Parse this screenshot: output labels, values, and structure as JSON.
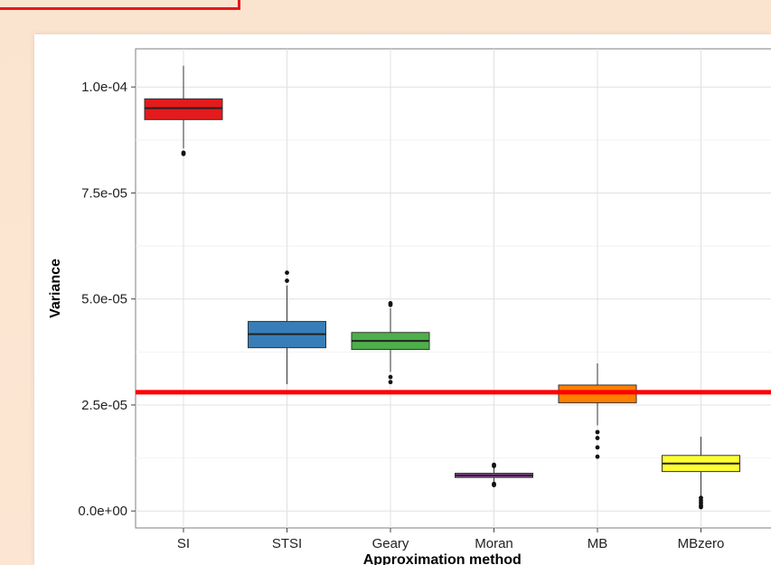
{
  "chart_data": {
    "type": "box",
    "title": "",
    "xlabel": "Approximation method",
    "ylabel": "Variance",
    "ylim": [
      -4e-06,
      0.000109
    ],
    "yticks": [
      {
        "value": 0,
        "label": "0.0e+00"
      },
      {
        "value": 2.5e-05,
        "label": "2.5e-05"
      },
      {
        "value": 5e-05,
        "label": "5.0e-05"
      },
      {
        "value": 7.5e-05,
        "label": "7.5e-05"
      },
      {
        "value": 0.0001,
        "label": "1.0e-04"
      }
    ],
    "grid": true,
    "legend": "none",
    "reference_line": {
      "value": 2.8e-05,
      "color": "#ff0000"
    },
    "categories": [
      "SI",
      "STSI",
      "Geary",
      "Moran",
      "MB",
      "MBzero"
    ],
    "boxes": [
      {
        "category": "SI",
        "color": "#e41a1c",
        "whisker_low": 8.55e-05,
        "q1": 9.23e-05,
        "median": 9.5e-05,
        "q3": 9.72e-05,
        "whisker_high": 0.000105,
        "outliers": [
          8.45e-05,
          8.42e-05
        ]
      },
      {
        "category": "STSI",
        "color": "#377eb8",
        "whisker_low": 2.99e-05,
        "q1": 3.85e-05,
        "median": 4.17e-05,
        "q3": 4.47e-05,
        "whisker_high": 5.32e-05,
        "outliers": [
          5.43e-05,
          5.62e-05
        ]
      },
      {
        "category": "Geary",
        "color": "#4daf4a",
        "whisker_low": 3.28e-05,
        "q1": 3.81e-05,
        "median": 4.01e-05,
        "q3": 4.21e-05,
        "whisker_high": 4.78e-05,
        "outliers": [
          4.86e-05,
          4.9e-05,
          3.16e-05,
          3.04e-05
        ]
      },
      {
        "category": "Moran",
        "color": "#984ea3",
        "whisker_low": 6.8e-06,
        "q1": 7.9e-06,
        "median": 8.4e-06,
        "q3": 8.9e-06,
        "whisker_high": 1.02e-05,
        "outliers": [
          1.06e-05,
          1.09e-05,
          6.4e-06,
          6.1e-06
        ]
      },
      {
        "category": "MB",
        "color": "#ff7f00",
        "whisker_low": 2.02e-05,
        "q1": 2.55e-05,
        "median": 2.78e-05,
        "q3": 2.97e-05,
        "whisker_high": 3.48e-05,
        "outliers": [
          1.86e-05,
          1.72e-05,
          1.5e-05,
          1.28e-05
        ]
      },
      {
        "category": "MBzero",
        "color": "#ffff33",
        "whisker_low": 3.5e-06,
        "q1": 9.3e-06,
        "median": 1.12e-05,
        "q3": 1.31e-05,
        "whisker_high": 1.75e-05,
        "outliers": [
          3.1e-06,
          2.5e-06,
          1.9e-06,
          1.3e-06,
          9e-07
        ]
      }
    ]
  }
}
